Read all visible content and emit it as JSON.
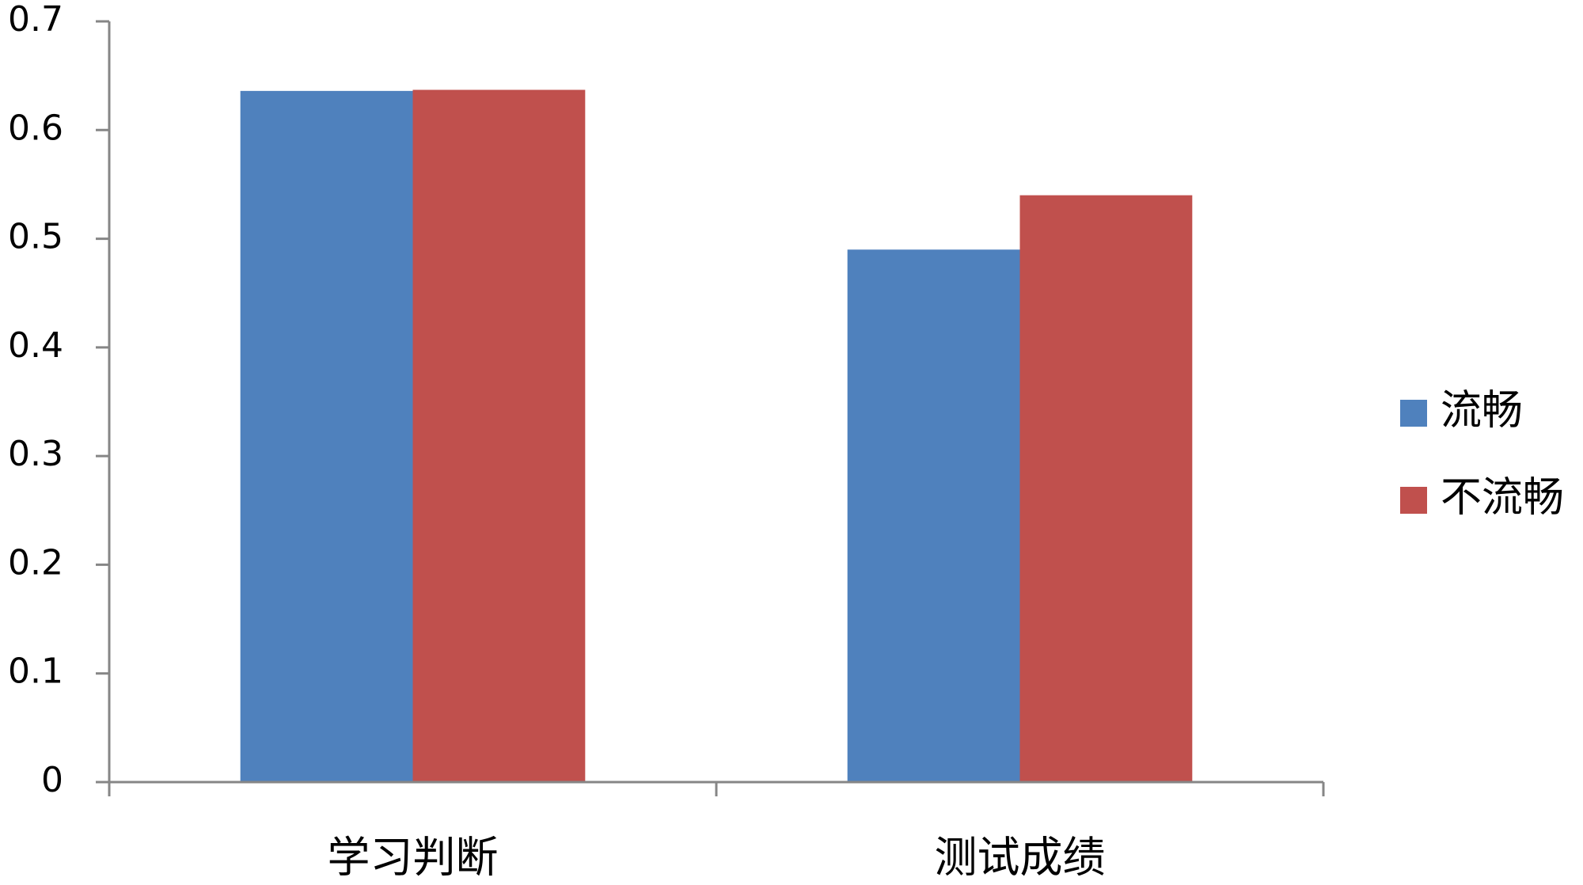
{
  "chart_data": {
    "type": "bar",
    "categories": [
      "学习判断",
      "测试成绩"
    ],
    "series": [
      {
        "name": "流畅",
        "color": "#4f81bd",
        "values": [
          0.636,
          0.49
        ]
      },
      {
        "name": "不流畅",
        "color": "#c0504d",
        "values": [
          0.637,
          0.54
        ]
      }
    ],
    "ylim": [
      0,
      0.7
    ],
    "yticks": [
      0,
      0.1,
      0.2,
      0.3,
      0.4,
      0.5,
      0.6,
      0.7
    ],
    "grid": false,
    "legend": "right"
  }
}
